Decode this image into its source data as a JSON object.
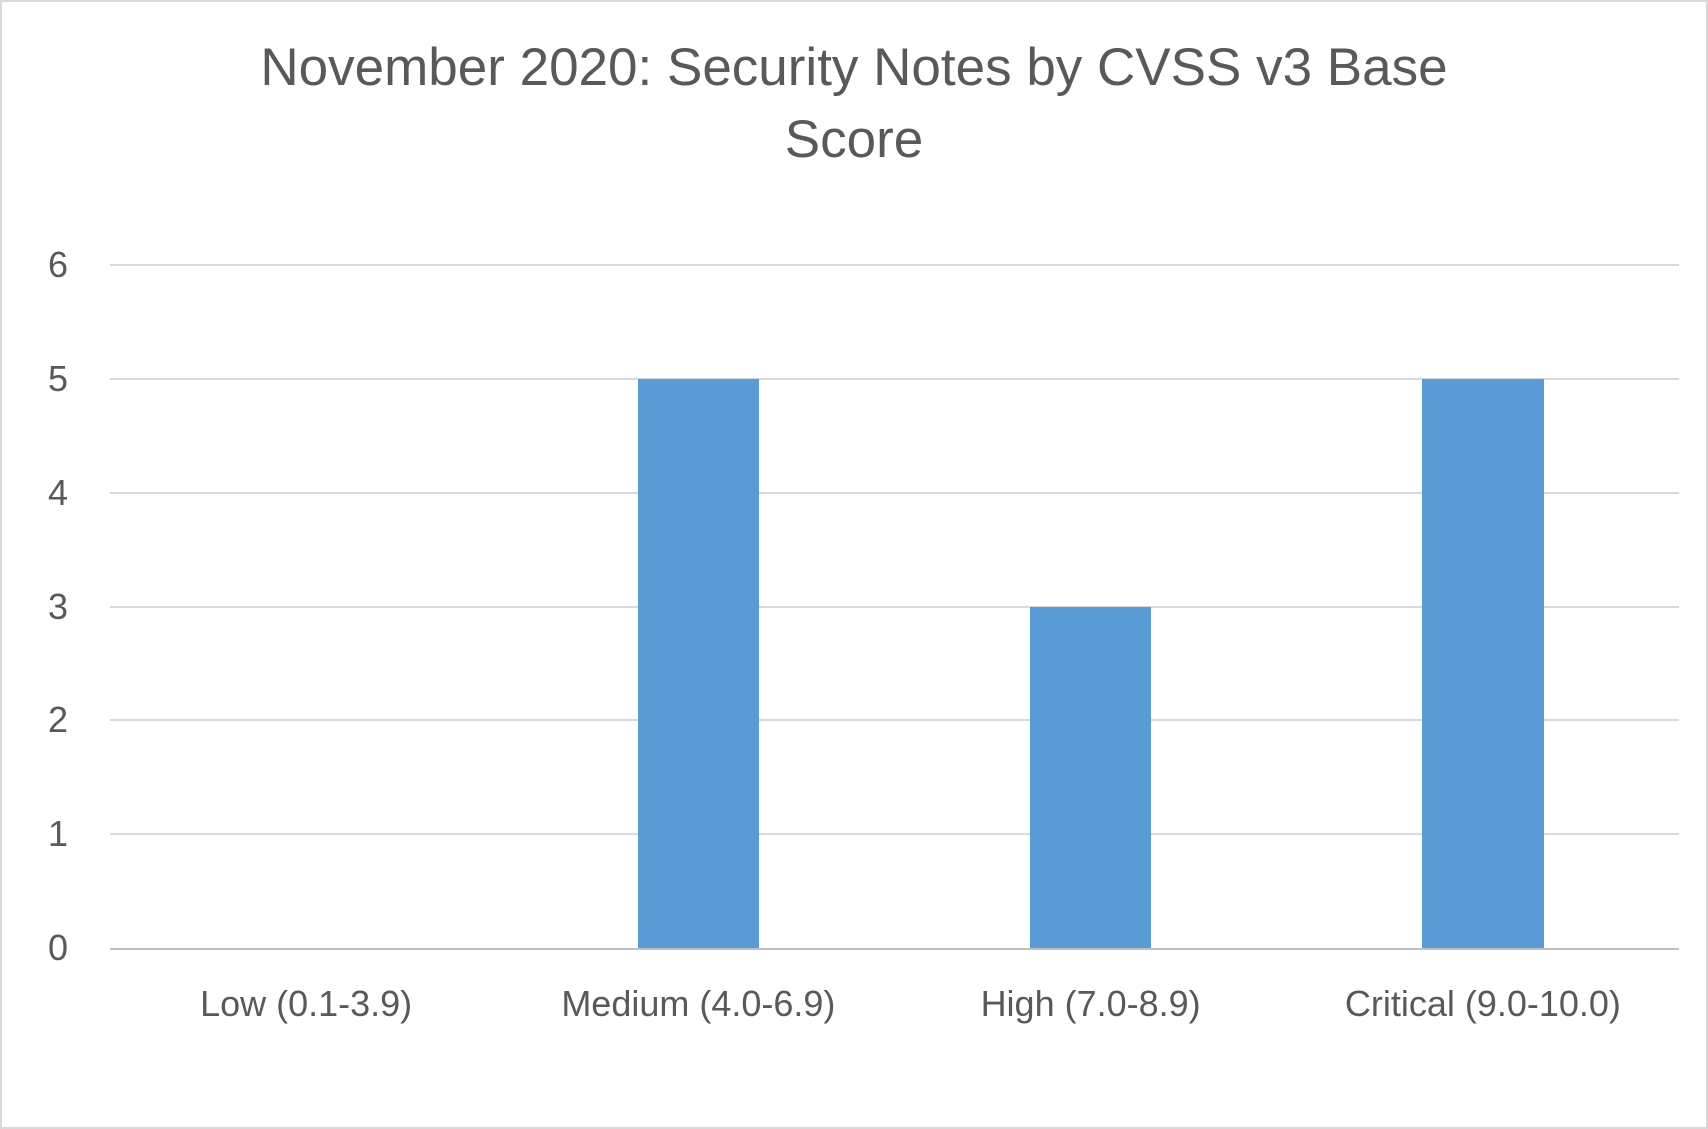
{
  "chart_data": {
    "type": "bar",
    "title": "November 2020: Security Notes by CVSS v3 Base Score",
    "categories": [
      "Low (0.1-3.9)",
      "Medium (4.0-6.9)",
      "High (7.0-8.9)",
      "Critical (9.0-10.0)"
    ],
    "values": [
      0,
      5,
      3,
      5
    ],
    "xlabel": "",
    "ylabel": "",
    "ylim": [
      0,
      6
    ],
    "yticks": [
      0,
      1,
      2,
      3,
      4,
      5,
      6
    ],
    "grid": true,
    "legend": false,
    "colors": {
      "bar": "#5B9BD5",
      "text": "#595959",
      "gridline": "#D9D9D9",
      "axis_line": "#BFBFBF",
      "background": "#FFFFFF",
      "frame_border": "#D9D9D9"
    }
  }
}
